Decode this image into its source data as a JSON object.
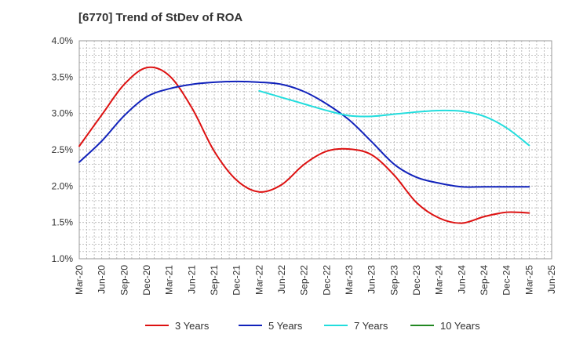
{
  "title": "[6770]  Trend of StDev of ROA",
  "chart_data": {
    "type": "line",
    "title": "[6770]  Trend of StDev of ROA",
    "xlabel": "",
    "ylabel": "",
    "x_ticks": [
      "Mar-20",
      "Jun-20",
      "Sep-20",
      "Dec-20",
      "Mar-21",
      "Jun-21",
      "Sep-21",
      "Dec-21",
      "Mar-22",
      "Jun-22",
      "Sep-22",
      "Dec-22",
      "Mar-23",
      "Jun-23",
      "Sep-23",
      "Dec-23",
      "Mar-24",
      "Jun-24",
      "Sep-24",
      "Dec-24",
      "Mar-25",
      "Jun-25"
    ],
    "y_ticks": [
      "1.0%",
      "1.5%",
      "2.0%",
      "2.5%",
      "3.0%",
      "3.5%",
      "4.0%"
    ],
    "ylim": [
      1.0,
      4.0
    ],
    "grid": true,
    "legend_position": "bottom",
    "series": [
      {
        "name": "3 Years",
        "color": "#dd1111",
        "points": [
          [
            "Mar-20",
            2.55
          ],
          [
            "Jun-20",
            2.98
          ],
          [
            "Sep-20",
            3.4
          ],
          [
            "Dec-20",
            3.63
          ],
          [
            "Mar-21",
            3.52
          ],
          [
            "Jun-21",
            3.08
          ],
          [
            "Sep-21",
            2.48
          ],
          [
            "Dec-21",
            2.08
          ],
          [
            "Mar-22",
            1.92
          ],
          [
            "Jun-22",
            2.02
          ],
          [
            "Sep-22",
            2.3
          ],
          [
            "Dec-22",
            2.48
          ],
          [
            "Mar-23",
            2.51
          ],
          [
            "Jun-23",
            2.43
          ],
          [
            "Sep-23",
            2.15
          ],
          [
            "Dec-23",
            1.77
          ],
          [
            "Mar-24",
            1.56
          ],
          [
            "Jun-24",
            1.49
          ],
          [
            "Sep-24",
            1.58
          ],
          [
            "Dec-24",
            1.64
          ],
          [
            "Mar-25",
            1.63
          ]
        ]
      },
      {
        "name": "5 Years",
        "color": "#1122bb",
        "points": [
          [
            "Mar-20",
            2.33
          ],
          [
            "Jun-20",
            2.62
          ],
          [
            "Sep-20",
            2.97
          ],
          [
            "Dec-20",
            3.23
          ],
          [
            "Mar-21",
            3.34
          ],
          [
            "Jun-21",
            3.4
          ],
          [
            "Sep-21",
            3.43
          ],
          [
            "Dec-21",
            3.44
          ],
          [
            "Mar-22",
            3.43
          ],
          [
            "Jun-22",
            3.4
          ],
          [
            "Sep-22",
            3.3
          ],
          [
            "Dec-22",
            3.13
          ],
          [
            "Mar-23",
            2.91
          ],
          [
            "Jun-23",
            2.61
          ],
          [
            "Sep-23",
            2.3
          ],
          [
            "Dec-23",
            2.12
          ],
          [
            "Mar-24",
            2.04
          ],
          [
            "Jun-24",
            1.99
          ],
          [
            "Sep-24",
            1.99
          ],
          [
            "Dec-24",
            1.99
          ],
          [
            "Mar-25",
            1.99
          ]
        ]
      },
      {
        "name": "7 Years",
        "color": "#22dddd",
        "points": [
          [
            "Mar-22",
            3.31
          ],
          [
            "Jun-22",
            3.22
          ],
          [
            "Sep-22",
            3.13
          ],
          [
            "Dec-22",
            3.04
          ],
          [
            "Mar-23",
            2.97
          ],
          [
            "Jun-23",
            2.96
          ],
          [
            "Sep-23",
            2.99
          ],
          [
            "Dec-23",
            3.02
          ],
          [
            "Mar-24",
            3.04
          ],
          [
            "Jun-24",
            3.03
          ],
          [
            "Sep-24",
            2.96
          ],
          [
            "Dec-24",
            2.8
          ],
          [
            "Mar-25",
            2.56
          ]
        ]
      },
      {
        "name": "10 Years",
        "color": "#228822",
        "points": []
      }
    ]
  }
}
